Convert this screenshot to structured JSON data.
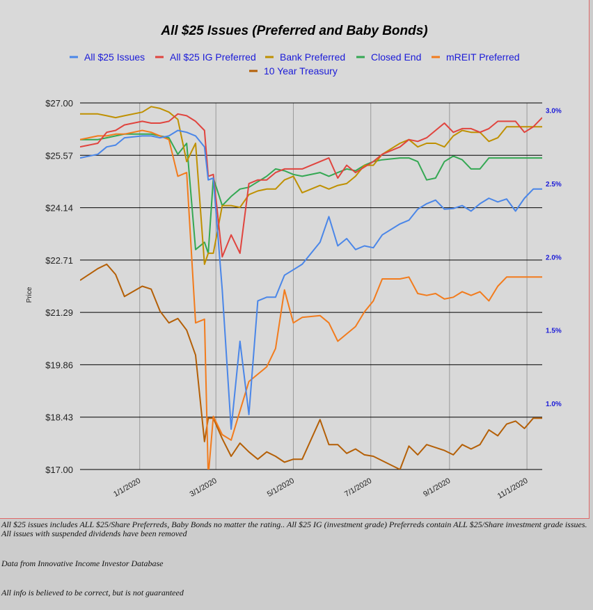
{
  "chart_data": {
    "type": "line",
    "title": "All $25 Issues (Preferred and Baby Bonds)",
    "ylabel": "Price",
    "y_ticks": [
      "$27.00",
      "$25.57",
      "$24.14",
      "$22.71",
      "$21.29",
      "$19.86",
      "$18.43",
      "$17.00"
    ],
    "ylim": [
      17.0,
      27.0
    ],
    "y2_ticks": [
      "3.0%",
      "2.5%",
      "2.0%",
      "1.5%",
      "1.0%"
    ],
    "y2lim": [
      0.55,
      3.05
    ],
    "x_ticks": [
      "1/1/2020",
      "3/1/2020",
      "5/1/2020",
      "7/1/2020",
      "9/1/2020",
      "11/1/2020"
    ],
    "x": [
      "11/15/2019",
      "11/29/2019",
      "12/6/2019",
      "12/13/2019",
      "12/20/2019",
      "1/3/2020",
      "1/10/2020",
      "1/17/2020",
      "1/24/2020",
      "1/31/2020",
      "2/7/2020",
      "2/14/2020",
      "2/21/2020",
      "2/24/2020",
      "2/28/2020",
      "3/6/2020",
      "3/13/2020",
      "3/20/2020",
      "3/27/2020",
      "4/3/2020",
      "4/10/2020",
      "4/17/2020",
      "4/24/2020",
      "5/1/2020",
      "5/8/2020",
      "5/22/2020",
      "5/29/2020",
      "6/5/2020",
      "6/12/2020",
      "6/19/2020",
      "6/26/2020",
      "7/3/2020",
      "7/10/2020",
      "7/24/2020",
      "7/31/2020",
      "8/7/2020",
      "8/14/2020",
      "8/21/2020",
      "8/28/2020",
      "9/4/2020",
      "9/11/2020",
      "9/18/2020",
      "9/25/2020",
      "10/2/2020",
      "10/9/2020",
      "10/16/2020",
      "10/23/2020",
      "10/30/2020",
      "11/6/2020",
      "11/13/2020"
    ],
    "series": [
      {
        "name": "All $25 Issues",
        "color": "#4a86e8",
        "axis": "left",
        "values": [
          25.5,
          25.6,
          25.8,
          25.85,
          26.05,
          26.1,
          26.1,
          26.05,
          26.1,
          26.25,
          26.2,
          26.1,
          25.8,
          24.9,
          24.95,
          21.9,
          18.1,
          20.5,
          18.5,
          21.6,
          21.7,
          21.7,
          22.3,
          22.45,
          22.6,
          23.2,
          23.9,
          23.1,
          23.3,
          23.0,
          23.1,
          23.05,
          23.4,
          23.7,
          23.8,
          24.1,
          24.25,
          24.35,
          24.1,
          24.12,
          24.2,
          24.05,
          24.25,
          24.4,
          24.3,
          24.38,
          24.05,
          24.4,
          24.65,
          24.65
        ]
      },
      {
        "name": "All $25 IG Preferred",
        "color": "#e0443e",
        "axis": "left",
        "values": [
          25.8,
          25.9,
          26.2,
          26.25,
          26.4,
          26.5,
          26.45,
          26.45,
          26.5,
          26.7,
          26.65,
          26.5,
          26.25,
          25.0,
          25.05,
          22.8,
          23.4,
          22.9,
          24.8,
          24.9,
          24.9,
          25.1,
          25.2,
          25.2,
          25.2,
          25.4,
          25.5,
          24.95,
          25.3,
          25.1,
          25.25,
          25.4,
          25.6,
          25.8,
          26.0,
          25.95,
          26.05,
          26.25,
          26.45,
          26.2,
          26.3,
          26.3,
          26.2,
          26.3,
          26.5,
          26.5,
          26.5,
          26.2,
          26.35,
          26.6
        ]
      },
      {
        "name": "Bank Preferred",
        "color": "#bf9000",
        "axis": "left",
        "values": [
          26.7,
          26.7,
          26.65,
          26.6,
          26.65,
          26.75,
          26.9,
          26.85,
          26.75,
          26.55,
          25.4,
          25.9,
          22.6,
          22.9,
          22.9,
          24.2,
          24.2,
          24.15,
          24.5,
          24.6,
          24.65,
          24.65,
          24.9,
          25.0,
          24.55,
          24.75,
          24.65,
          24.75,
          24.8,
          25.0,
          25.3,
          25.3,
          25.6,
          25.9,
          26.0,
          25.8,
          25.9,
          25.9,
          25.8,
          26.1,
          26.25,
          26.2,
          26.2,
          25.95,
          26.05,
          26.35,
          26.35,
          26.35,
          26.35,
          26.35
        ]
      },
      {
        "name": "Closed End",
        "color": "#34a853",
        "axis": "left",
        "values": [
          26.0,
          26.0,
          26.05,
          26.1,
          26.15,
          26.15,
          26.15,
          26.1,
          26.05,
          25.6,
          25.9,
          23.0,
          23.2,
          22.9,
          24.95,
          24.2,
          24.45,
          24.65,
          24.7,
          24.85,
          25.0,
          25.2,
          25.15,
          25.05,
          25.0,
          25.1,
          25.0,
          25.1,
          25.2,
          25.15,
          25.3,
          25.4,
          25.45,
          25.5,
          25.5,
          25.4,
          24.9,
          24.95,
          25.4,
          25.55,
          25.45,
          25.2,
          25.2,
          25.5,
          25.5,
          25.5,
          25.5,
          25.5,
          25.5,
          25.5
        ]
      },
      {
        "name": "mREIT Preferred",
        "color": "#f27b1c",
        "axis": "left",
        "values": [
          26.0,
          26.1,
          26.1,
          26.15,
          26.15,
          26.25,
          26.2,
          26.1,
          26.0,
          25.0,
          25.1,
          21.0,
          21.1,
          16.8,
          18.45,
          17.95,
          17.8,
          18.6,
          19.4,
          19.6,
          19.8,
          20.3,
          21.9,
          21.0,
          21.15,
          21.2,
          21.0,
          20.5,
          20.7,
          20.9,
          21.3,
          21.6,
          22.2,
          22.2,
          22.25,
          21.8,
          21.75,
          21.8,
          21.65,
          21.7,
          21.85,
          21.75,
          21.85,
          21.6,
          22.0,
          22.25,
          22.25,
          22.25,
          22.25,
          22.25
        ]
      },
      {
        "name": "10 Year Treasury",
        "color": "#b45f06",
        "axis": "right",
        "values": [
          1.84,
          1.92,
          1.95,
          1.88,
          1.73,
          1.8,
          1.78,
          1.63,
          1.55,
          1.58,
          1.5,
          1.33,
          0.74,
          0.9,
          0.9,
          0.76,
          0.64,
          0.73,
          0.67,
          0.62,
          0.67,
          0.64,
          0.6,
          0.62,
          0.62,
          0.89,
          0.72,
          0.72,
          0.66,
          0.69,
          0.65,
          0.64,
          0.61,
          0.55,
          0.71,
          0.65,
          0.72,
          0.7,
          0.68,
          0.65,
          0.72,
          0.69,
          0.72,
          0.82,
          0.78,
          0.86,
          0.88,
          0.83,
          0.9,
          0.9
        ]
      }
    ],
    "legend_placement": "top",
    "grid": "horizontal-major, vertical-minor"
  },
  "notes": {
    "line1": "All $25 issues includes ALL $25/Share Preferreds, Baby Bonds no matter the rating..  All $25 IG (investment grade) Preferreds contain ALL $25/Share investment grade issues.  All issues with suspended dividends have been removed",
    "line2": "Data from Innovative Income Investor Database",
    "line3": "All info is believed to be correct, but is not guaranteed"
  }
}
